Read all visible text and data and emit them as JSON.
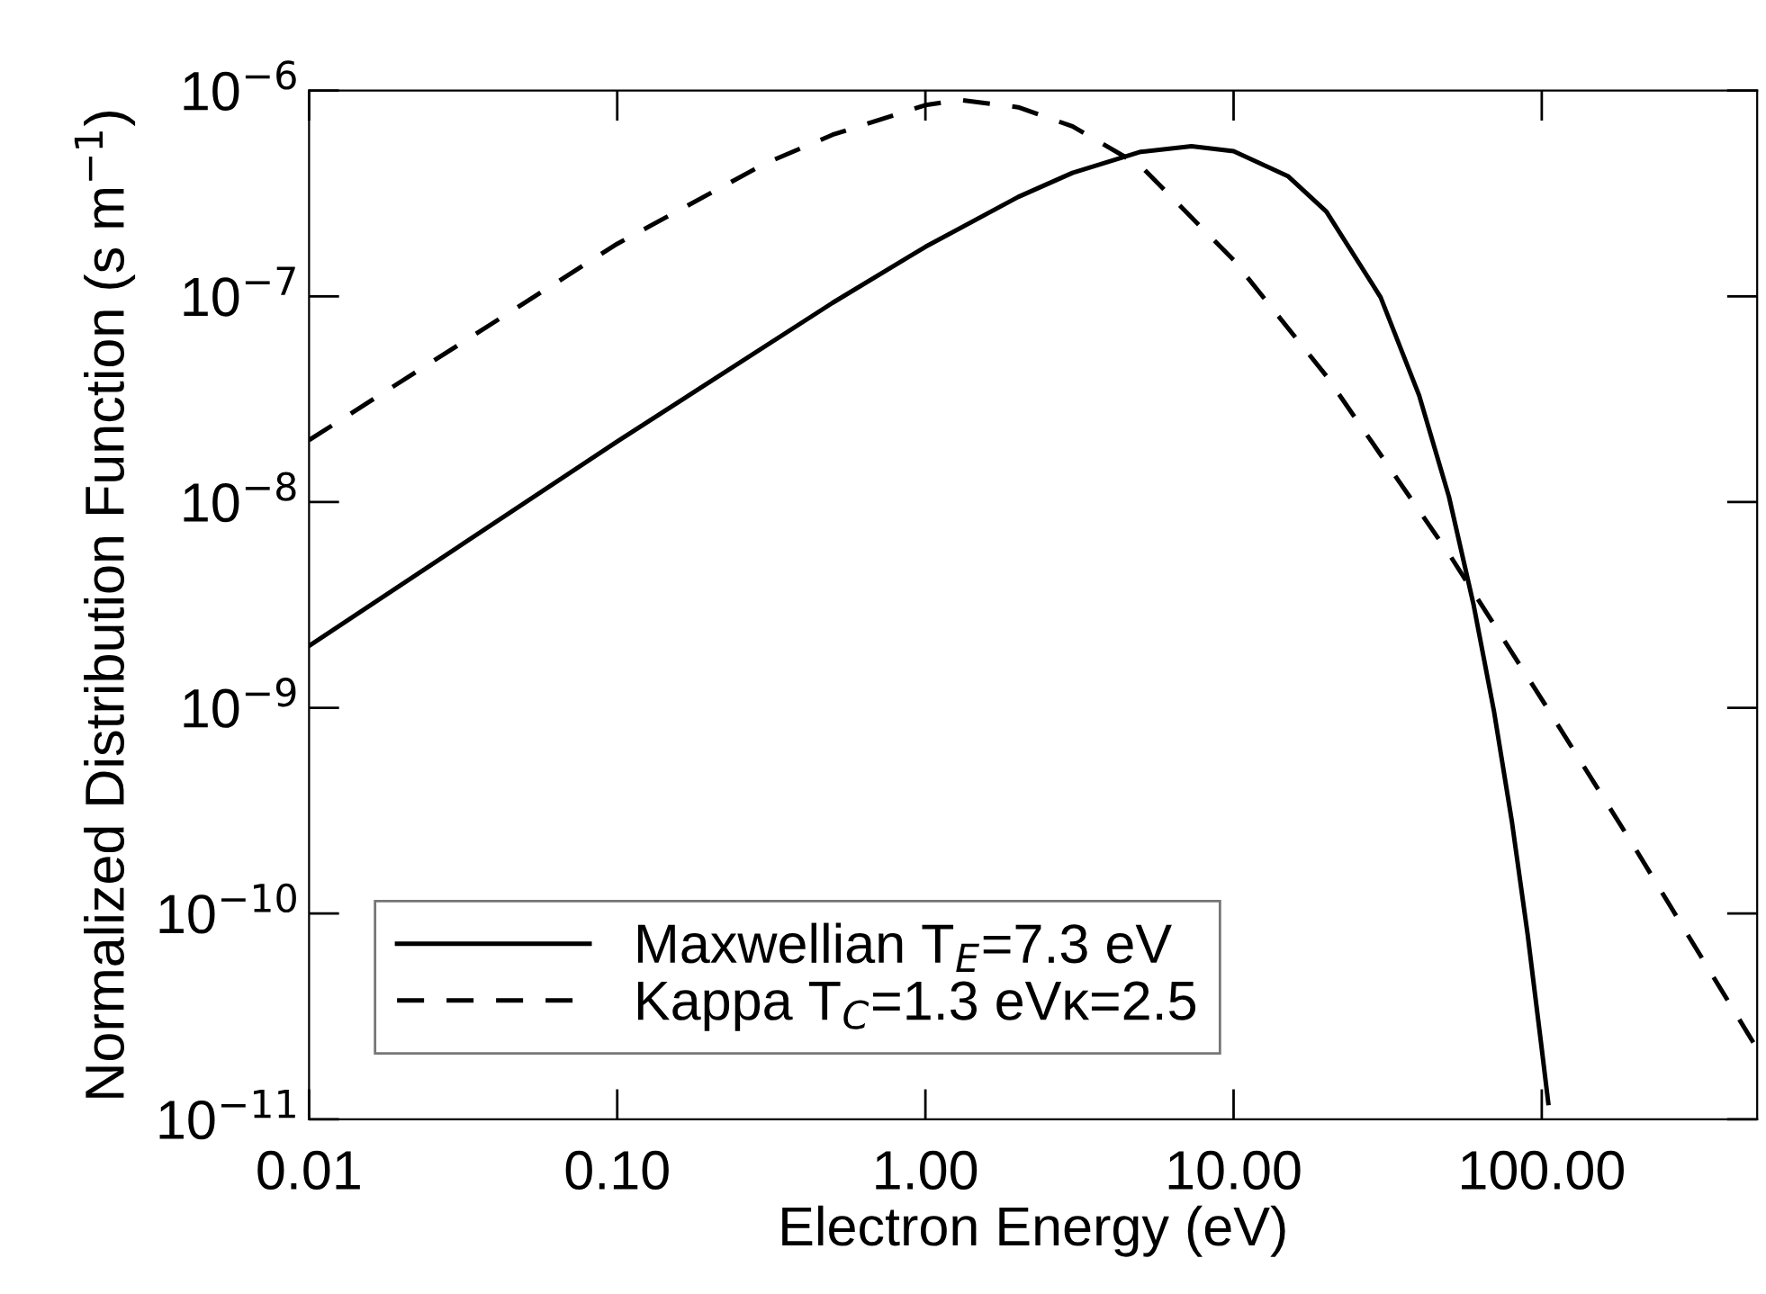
{
  "chart_data": {
    "type": "line",
    "xlabel": "Electron Energy (eV)",
    "ylabel": "Normalized Distribution Function (s m$^{−1}$)",
    "log": "xy",
    "xlim": [
      0.01,
      500
    ],
    "ylim": [
      1e-11,
      1e-06
    ],
    "xticks": [
      {
        "value": 0.01,
        "label": "0.01"
      },
      {
        "value": 0.1,
        "label": "0.10"
      },
      {
        "value": 1,
        "label": "1.00"
      },
      {
        "value": 10,
        "label": "10.00"
      },
      {
        "value": 100,
        "label": "100.00"
      }
    ],
    "yticks": [
      {
        "value": 1e-11,
        "label": "10$^{−11}$"
      },
      {
        "value": 1e-10,
        "label": "10$^{−10}$"
      },
      {
        "value": 1e-09,
        "label": "10$^{−9}$"
      },
      {
        "value": 1e-08,
        "label": "10$^{−8}$"
      },
      {
        "value": 1e-07,
        "label": "10$^{−7}$"
      },
      {
        "value": 1e-06,
        "label": "10$^{−6}$"
      }
    ],
    "grid": false,
    "legend": "bottom left",
    "marker": "none",
    "series": [
      {
        "name": "Maxwellian T$_{E}$=7.3 eV",
        "color": "#000000",
        "line_style": "solid",
        "x": [
          0.01,
          0.1,
          0.5,
          1,
          2,
          3,
          5,
          7.3,
          10,
          15,
          20,
          30,
          40,
          50,
          60,
          70,
          80,
          90,
          100,
          105
        ],
        "values": [
          2e-09,
          1.97e-08,
          9.3e-08,
          1.74e-07,
          3.04e-07,
          3.98e-07,
          5.04e-07,
          5.37e-07,
          5.08e-07,
          3.84e-07,
          2.58e-07,
          9.9e-08,
          3.3e-08,
          1.06e-08,
          3.2e-09,
          9.6e-10,
          2.8e-10,
          7.9e-11,
          2.2e-11,
          1.2e-11
        ]
      },
      {
        "name": "Kappa T$_{C}$=1.3 eVκ=2.5",
        "color": "#000000",
        "line_style": "dashed",
        "x": [
          0.01,
          0.1,
          0.3,
          0.5,
          1,
          1.3,
          2,
          3,
          5,
          10,
          20,
          50,
          100,
          200,
          500
        ],
        "values": [
          2e-08,
          1.8e-07,
          4.4e-07,
          6.1e-07,
          8.5e-07,
          9e-07,
          8.3e-07,
          6.7e-07,
          4.3e-07,
          1.5e-07,
          4.1e-08,
          5.6e-09,
          1.1e-09,
          2.1e-10,
          2.2e-11
        ]
      }
    ]
  }
}
